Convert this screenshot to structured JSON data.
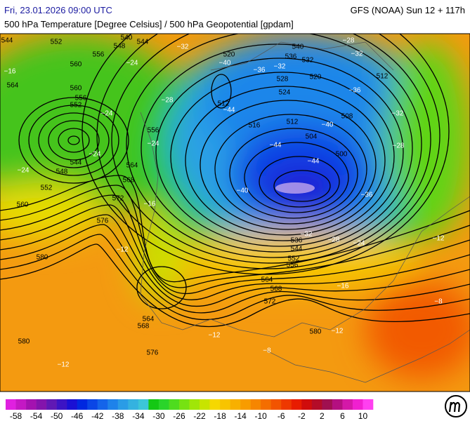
{
  "header": {
    "datetime": "Fri, 23.01.2026 09:00 UTC",
    "model": "GFS (NOAA) Sun 12 + 117h",
    "subtitle": "500 hPa Temperature [Degree Celsius] / 500 hPa Geopotential [gpdam]"
  },
  "geopotential_labels": [
    544,
    552,
    540,
    548,
    544,
    556,
    560,
    564,
    560,
    556,
    552,
    544,
    548,
    552,
    560,
    564,
    568,
    572,
    576,
    580,
    556,
    520,
    536,
    540,
    532,
    528,
    520,
    524,
    512,
    516,
    512,
    508,
    504,
    500,
    512,
    536,
    544,
    552,
    556,
    564,
    568,
    572,
    580,
    564,
    568,
    580,
    576
  ],
  "temperature_labels": [
    "−32",
    "−28",
    "−32",
    "−16",
    "−24",
    "−40",
    "−36",
    "−32",
    "−36",
    "−28",
    "−24",
    "−44",
    "−40",
    "−32",
    "−44",
    "−28",
    "−24",
    "−24",
    "−24",
    "−44",
    "−40",
    "−36",
    "−32",
    "−28",
    "−24",
    "−12",
    "−16",
    "−12",
    "−12",
    "−8",
    "−12",
    "−8",
    "−16",
    "−12"
  ],
  "colorbar": {
    "range": [
      -60,
      12
    ],
    "ticks": [
      -58,
      -54,
      -50,
      -46,
      -42,
      -38,
      -34,
      -30,
      -26,
      -22,
      -18,
      -14,
      -10,
      -6,
      -2,
      2,
      6,
      10
    ],
    "colors": [
      "#e020e0",
      "#c418c4",
      "#a412b0",
      "#8414ac",
      "#6018b4",
      "#3c14c4",
      "#1a10d4",
      "#0028e0",
      "#0a46e6",
      "#1464ea",
      "#1e82ea",
      "#2a9ce6",
      "#34b2e0",
      "#3cc6d8",
      "#14c814",
      "#2ad42a",
      "#4edc1e",
      "#76e212",
      "#a0e608",
      "#c8e400",
      "#f6d800",
      "#f8c400",
      "#f8b000",
      "#f89c00",
      "#f68600",
      "#f46e00",
      "#f25400",
      "#ee3800",
      "#e81c00",
      "#d00c0c",
      "#b40c28",
      "#a01050",
      "#b41080",
      "#d418a8",
      "#f020d0",
      "#ff40f0"
    ]
  }
}
